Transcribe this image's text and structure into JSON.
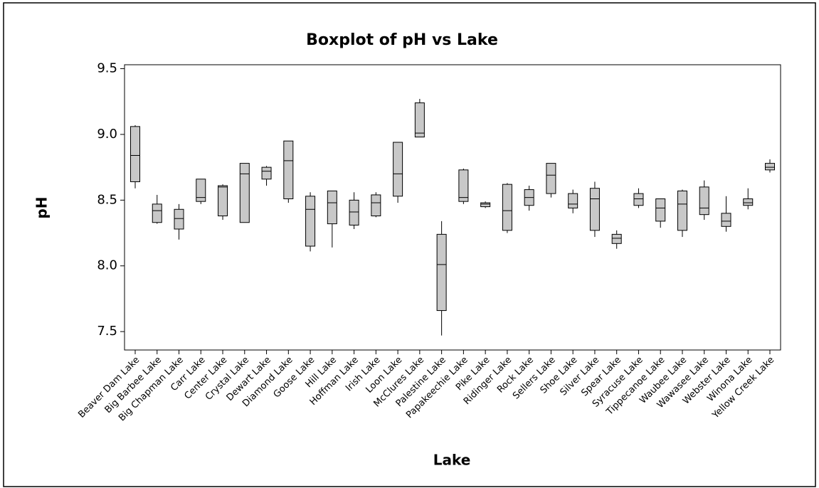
{
  "chart_data": {
    "type": "boxplot",
    "title": "Boxplot of pH vs Lake",
    "x_label": "Lake",
    "y_label": "pH",
    "categories": [
      "Beaver Dam Lake",
      "Big Barbee Lake",
      "Big Chapman Lake",
      "Carr Lake",
      "Center Lake",
      "Crystal Lake",
      "Dewart Lake",
      "Diamond Lake",
      "Goose Lake",
      "Hill Lake",
      "Hoffman Lake",
      "Irish Lake",
      "Loon Lake",
      "McClures Lake",
      "Palestine Lake",
      "Papakeechie Lake",
      "Pike Lake",
      "Ridinger Lake",
      "Rock Lake",
      "Sellers Lake",
      "Shoe Lake",
      "Silver Lake",
      "Spear Lake",
      "Syracuse Lake",
      "Tippecanoe Lake",
      "Waubee Lake",
      "Wawasee Lake",
      "Webster Lake",
      "Winona Lake",
      "Yellow Creek Lake"
    ],
    "min": [
      8.59,
      8.32,
      8.2,
      8.47,
      8.35,
      8.33,
      8.61,
      8.48,
      8.11,
      8.14,
      8.28,
      8.37,
      8.48,
      8.98,
      7.47,
      8.47,
      8.44,
      8.25,
      8.42,
      8.52,
      8.4,
      8.22,
      8.13,
      8.44,
      8.29,
      8.22,
      8.35,
      8.26,
      8.43,
      8.71
    ],
    "q1": [
      8.64,
      8.33,
      8.28,
      8.49,
      8.38,
      8.33,
      8.66,
      8.51,
      8.15,
      8.32,
      8.31,
      8.38,
      8.53,
      8.98,
      7.66,
      8.49,
      8.45,
      8.27,
      8.46,
      8.55,
      8.44,
      8.27,
      8.17,
      8.46,
      8.34,
      8.27,
      8.39,
      8.3,
      8.46,
      8.73
    ],
    "median": [
      8.84,
      8.42,
      8.36,
      8.52,
      8.6,
      8.7,
      8.72,
      8.8,
      8.43,
      8.48,
      8.41,
      8.48,
      8.7,
      9.01,
      8.01,
      8.52,
      8.47,
      8.42,
      8.52,
      8.69,
      8.47,
      8.51,
      8.21,
      8.51,
      8.44,
      8.47,
      8.44,
      8.34,
      8.48,
      8.75
    ],
    "q3": [
      9.06,
      8.47,
      8.43,
      8.66,
      8.61,
      8.78,
      8.75,
      8.95,
      8.53,
      8.57,
      8.5,
      8.54,
      8.94,
      9.24,
      8.24,
      8.73,
      8.48,
      8.62,
      8.58,
      8.78,
      8.55,
      8.59,
      8.24,
      8.55,
      8.51,
      8.57,
      8.6,
      8.4,
      8.51,
      8.78
    ],
    "max": [
      9.07,
      8.54,
      8.47,
      8.66,
      8.62,
      8.78,
      8.76,
      8.95,
      8.56,
      8.57,
      8.56,
      8.56,
      8.94,
      9.27,
      8.34,
      8.74,
      8.49,
      8.63,
      8.61,
      8.78,
      8.58,
      8.64,
      8.27,
      8.59,
      8.51,
      8.58,
      8.65,
      8.53,
      8.59,
      8.81
    ],
    "color": "#c8c8c8",
    "ylim": [
      7.36,
      9.53
    ],
    "yticks": [
      {
        "value": 7.5,
        "label": "7.5"
      },
      {
        "value": 8,
        "label": "8.0"
      },
      {
        "value": 8.5,
        "label": "8.5"
      },
      {
        "value": 9,
        "label": "9.0"
      },
      {
        "value": 9.5,
        "label": "9.5"
      }
    ]
  }
}
